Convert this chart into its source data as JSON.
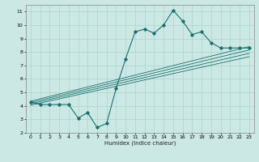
{
  "xlabel": "Humidex (Indice chaleur)",
  "bg_color": "#cce8e4",
  "grid_color": "#aad4cc",
  "line_color": "#1a7070",
  "xlim": [
    -0.5,
    23.5
  ],
  "ylim": [
    2,
    11.5
  ],
  "x_ticks": [
    0,
    1,
    2,
    3,
    4,
    5,
    6,
    7,
    8,
    9,
    10,
    11,
    12,
    13,
    14,
    15,
    16,
    17,
    18,
    19,
    20,
    21,
    22,
    23
  ],
  "y_ticks": [
    2,
    3,
    4,
    5,
    6,
    7,
    8,
    9,
    10,
    11
  ],
  "main_line_x": [
    0,
    1,
    2,
    3,
    4,
    5,
    6,
    7,
    8,
    9,
    10,
    11,
    12,
    13,
    14,
    15,
    16,
    17,
    18,
    19,
    20,
    21,
    22,
    23
  ],
  "main_line_y": [
    4.3,
    4.1,
    4.1,
    4.1,
    4.1,
    3.1,
    3.5,
    2.4,
    2.7,
    5.3,
    7.5,
    9.5,
    9.7,
    9.4,
    10.0,
    11.1,
    10.3,
    9.3,
    9.5,
    8.7,
    8.3,
    8.3,
    8.3,
    8.3
  ],
  "ref_lines": [
    {
      "x": [
        0,
        23
      ],
      "y": [
        4.35,
        8.4
      ]
    },
    {
      "x": [
        0,
        23
      ],
      "y": [
        4.25,
        8.15
      ]
    },
    {
      "x": [
        0,
        23
      ],
      "y": [
        4.15,
        7.9
      ]
    },
    {
      "x": [
        0,
        23
      ],
      "y": [
        4.05,
        7.65
      ]
    }
  ]
}
